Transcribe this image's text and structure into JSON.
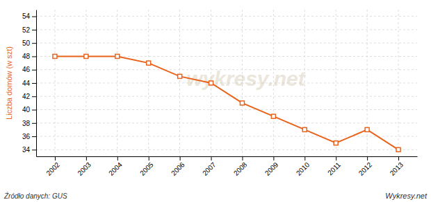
{
  "chart_data": {
    "type": "line",
    "x": [
      2002,
      2003,
      2004,
      2005,
      2006,
      2007,
      2008,
      2009,
      2010,
      2011,
      2012,
      2013
    ],
    "values": [
      48,
      48,
      48,
      47,
      45,
      44,
      41,
      39,
      37,
      35,
      37,
      34
    ],
    "color": "#E8621A",
    "marker": "square",
    "ylabel": "Liczba domów (w szt)",
    "xlim": [
      2001.4,
      2013.6
    ],
    "xticks": [
      2002,
      2003,
      2004,
      2005,
      2006,
      2007,
      2008,
      2009,
      2010,
      2011,
      2012,
      2013
    ],
    "ylim": [
      33,
      55
    ],
    "yticks": [
      34,
      36,
      38,
      40,
      42,
      44,
      46,
      48,
      50,
      52,
      54
    ],
    "grid": true,
    "annotations": [
      "Źródło danych:  GUS",
      "Wykresy.net",
      "wykresy.net"
    ]
  }
}
